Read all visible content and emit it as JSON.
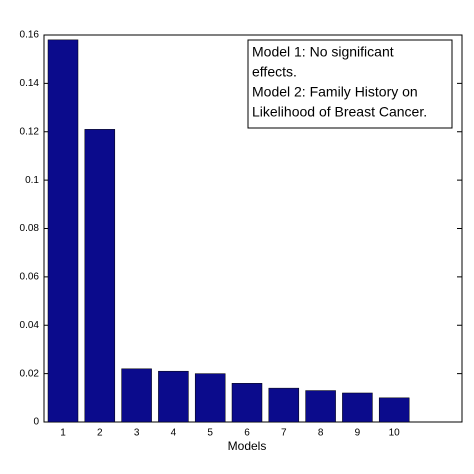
{
  "chart_data": {
    "type": "bar",
    "categories": [
      "1",
      "2",
      "3",
      "4",
      "5",
      "6",
      "7",
      "8",
      "9",
      "10"
    ],
    "values": [
      0.158,
      0.121,
      0.022,
      0.021,
      0.02,
      0.016,
      0.014,
      0.013,
      0.012,
      0.01
    ],
    "color": "#0b0b8c",
    "x_label": "Models",
    "ylim": [
      0,
      0.16
    ],
    "yticks": [
      0,
      0.02,
      0.04,
      0.06,
      0.08,
      0.1,
      0.12,
      0.14,
      0.16
    ],
    "annotation": [
      "Model 1: No significant",
      "effects.",
      "Model 2: Family History on",
      "Likelihood of Breast Cancer."
    ]
  }
}
